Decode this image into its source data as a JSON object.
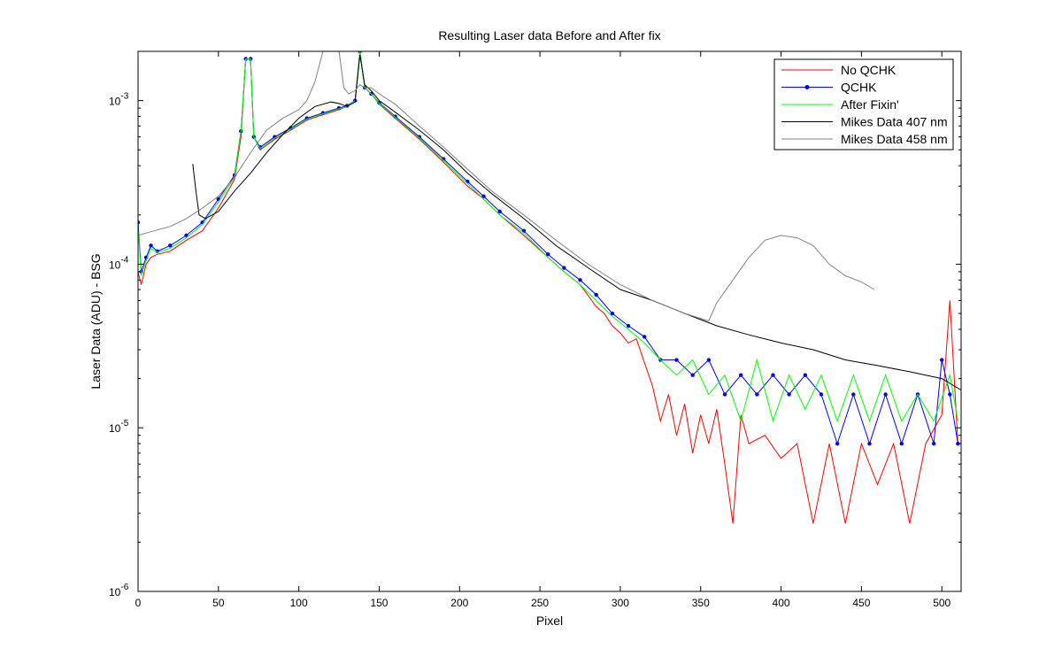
{
  "chart_data": {
    "type": "line",
    "title": "Resulting Laser data Before and After fix",
    "xlabel": "Pixel",
    "ylabel": "Laser Data (ADU) - BSG",
    "xlim": [
      0,
      512
    ],
    "ylim": [
      1e-06,
      0.002
    ],
    "yscale": "log",
    "grid": false,
    "legend_position": "top-right",
    "xticks": [
      0,
      50,
      100,
      150,
      200,
      250,
      300,
      350,
      400,
      450,
      500
    ],
    "xtick_labels": [
      "0",
      "50",
      "100",
      "150",
      "200",
      "250",
      "300",
      "350",
      "400",
      "450",
      "500"
    ],
    "yticks": [
      {
        "value": 0.001,
        "base": "10",
        "exp": "-3"
      },
      {
        "value": 0.0001,
        "base": "10",
        "exp": "-4"
      },
      {
        "value": 1e-05,
        "base": "10",
        "exp": "-5"
      },
      {
        "value": 1e-06,
        "base": "10",
        "exp": "-6"
      }
    ],
    "series": [
      {
        "name": "No QCHK",
        "color": "#ff0000",
        "marker": "none",
        "x": [
          0,
          2,
          5,
          8,
          12,
          20,
          30,
          40,
          50,
          60,
          64,
          67,
          70,
          72,
          76,
          85,
          95,
          105,
          115,
          125,
          130,
          135,
          138,
          141,
          145,
          150,
          160,
          175,
          190,
          205,
          215,
          225,
          240,
          255,
          265,
          275,
          285,
          290,
          295,
          300,
          305,
          310,
          315,
          320,
          325,
          330,
          335,
          340,
          345,
          350,
          355,
          360,
          365,
          370,
          375,
          380,
          390,
          400,
          410,
          420,
          430,
          440,
          450,
          460,
          470,
          480,
          490,
          500,
          505,
          510
        ],
        "y": [
          9e-05,
          7.5e-05,
          0.0001,
          0.00011,
          0.000115,
          0.00012,
          0.00014,
          0.00016,
          0.00022,
          0.00033,
          0.0006,
          0.0018,
          0.0018,
          0.0006,
          0.0005,
          0.00058,
          0.00066,
          0.00076,
          0.00082,
          0.00088,
          0.00092,
          0.001,
          0.002,
          0.0012,
          0.0011,
          0.00095,
          0.00078,
          0.00058,
          0.00042,
          0.0003,
          0.00025,
          0.0002,
          0.00015,
          0.00011,
          9e-05,
          7.5e-05,
          5.5e-05,
          5e-05,
          4.2e-05,
          3.8e-05,
          3.3e-05,
          3.5e-05,
          2.5e-05,
          1.8e-05,
          1.1e-05,
          1.6e-05,
          9e-06,
          1.4e-05,
          7e-06,
          1.2e-05,
          8e-06,
          1.3e-05,
          6e-06,
          2.6e-06,
          1.2e-05,
          8e-06,
          9e-06,
          6.5e-06,
          8e-06,
          2.6e-06,
          8e-06,
          2.6e-06,
          8e-06,
          4.5e-06,
          8e-06,
          2.6e-06,
          8e-06,
          1.2e-05,
          6e-05,
          8e-06
        ]
      },
      {
        "name": "QCHK",
        "color": "#0000ff",
        "marker": "dot",
        "x": [
          0,
          2,
          5,
          8,
          12,
          20,
          30,
          40,
          50,
          60,
          64,
          67,
          70,
          72,
          76,
          85,
          95,
          105,
          115,
          125,
          130,
          135,
          138,
          141,
          145,
          150,
          160,
          175,
          190,
          205,
          215,
          225,
          240,
          255,
          265,
          275,
          285,
          295,
          305,
          315,
          325,
          335,
          345,
          355,
          365,
          375,
          385,
          395,
          405,
          415,
          425,
          435,
          445,
          455,
          465,
          475,
          485,
          495,
          500,
          505,
          510
        ],
        "y": [
          0.00018,
          9e-05,
          0.00011,
          0.00013,
          0.00012,
          0.00013,
          0.00015,
          0.00018,
          0.00025,
          0.00035,
          0.00065,
          0.0018,
          0.0018,
          0.0006,
          0.00052,
          0.0006,
          0.00068,
          0.00078,
          0.00084,
          0.0009,
          0.00093,
          0.001,
          0.002,
          0.0012,
          0.0011,
          0.00097,
          0.0008,
          0.0006,
          0.00044,
          0.00032,
          0.00026,
          0.00021,
          0.00016,
          0.000115,
          9.5e-05,
          8e-05,
          6.5e-05,
          5e-05,
          4.2e-05,
          3.6e-05,
          2.6e-05,
          2.6e-05,
          2.1e-05,
          2.6e-05,
          1.6e-05,
          2.1e-05,
          1.6e-05,
          2.1e-05,
          1.6e-05,
          2.1e-05,
          1.6e-05,
          8e-06,
          1.6e-05,
          8e-06,
          1.6e-05,
          8e-06,
          1.6e-05,
          8e-06,
          2.6e-05,
          1.6e-05,
          8e-06
        ]
      },
      {
        "name": "After Fixin'",
        "color": "#00ff00",
        "marker": "none",
        "x": [
          0,
          2,
          5,
          8,
          12,
          20,
          30,
          40,
          50,
          60,
          64,
          67,
          70,
          72,
          76,
          85,
          95,
          105,
          115,
          125,
          130,
          135,
          138,
          141,
          145,
          150,
          160,
          175,
          190,
          205,
          215,
          225,
          240,
          255,
          265,
          275,
          285,
          295,
          305,
          315,
          325,
          335,
          345,
          355,
          365,
          375,
          385,
          395,
          405,
          415,
          425,
          435,
          445,
          455,
          465,
          475,
          485,
          495,
          505,
          510
        ],
        "y": [
          0.00017,
          8.5e-05,
          0.000105,
          0.000125,
          0.000118,
          0.000125,
          0.000145,
          0.000175,
          0.00024,
          0.00034,
          0.00065,
          0.0018,
          0.0018,
          0.0006,
          0.00051,
          0.00059,
          0.00067,
          0.00077,
          0.00083,
          0.00089,
          0.00092,
          0.001,
          0.002,
          0.0012,
          0.0011,
          0.00096,
          0.00079,
          0.00059,
          0.00043,
          0.00031,
          0.00025,
          0.0002,
          0.000155,
          0.00011,
          9e-05,
          7.5e-05,
          6e-05,
          4.8e-05,
          4e-05,
          3.3e-05,
          2.6e-05,
          2.1e-05,
          2.6e-05,
          1.6e-05,
          2.1e-05,
          1.1e-05,
          2.6e-05,
          1.1e-05,
          2.1e-05,
          1.3e-05,
          2.1e-05,
          1.1e-05,
          2.1e-05,
          1.1e-05,
          2.1e-05,
          1.1e-05,
          1.6e-05,
          1.1e-05,
          2.1e-05,
          1.1e-05
        ]
      },
      {
        "name": "Mikes Data 407 nm",
        "color": "#000000",
        "marker": "none",
        "x": [
          34,
          36,
          38,
          42,
          50,
          60,
          70,
          80,
          90,
          100,
          110,
          120,
          125,
          130,
          135,
          138,
          141,
          145,
          150,
          160,
          175,
          190,
          205,
          220,
          240,
          260,
          280,
          300,
          320,
          340,
          360,
          380,
          400,
          420,
          440,
          460,
          480,
          500,
          512
        ],
        "y": [
          0.00041,
          0.00028,
          0.0002,
          0.00019,
          0.00021,
          0.00028,
          0.00036,
          0.00048,
          0.00062,
          0.00078,
          0.00092,
          0.00098,
          0.00096,
          0.00092,
          0.00098,
          0.0019,
          0.00125,
          0.00115,
          0.001,
          0.00085,
          0.00066,
          0.0005,
          0.00036,
          0.00027,
          0.00019,
          0.00013,
          9.5e-05,
          7e-05,
          6e-05,
          5e-05,
          4.2e-05,
          3.7e-05,
          3.3e-05,
          3e-05,
          2.6e-05,
          2.4e-05,
          2.2e-05,
          2e-05,
          1.7e-05
        ]
      },
      {
        "name": "Mikes Data 458 nm",
        "color": "#808080",
        "marker": "none",
        "x": [
          0,
          10,
          20,
          30,
          40,
          50,
          60,
          70,
          80,
          90,
          100,
          105,
          110,
          115,
          118,
          121,
          125,
          128,
          131,
          135,
          138,
          141,
          145,
          150,
          160,
          175,
          190,
          205,
          220,
          240,
          260,
          280,
          300,
          320,
          340,
          355,
          360,
          370,
          380,
          390,
          400,
          410,
          420,
          430,
          440,
          450,
          458
        ],
        "y": [
          0.00015,
          0.00016,
          0.00017,
          0.00019,
          0.00022,
          0.00026,
          0.00034,
          0.00048,
          0.00066,
          0.00078,
          0.00088,
          0.001,
          0.0013,
          0.002,
          0.002,
          0.002,
          0.002,
          0.0012,
          0.0011,
          0.00115,
          0.00125,
          0.0012,
          0.0012,
          0.0011,
          0.00095,
          0.0007,
          0.00052,
          0.00038,
          0.00028,
          0.0002,
          0.00014,
          0.0001,
          7.5e-05,
          6e-05,
          5e-05,
          4.5e-05,
          5.8e-05,
          8e-05,
          0.00011,
          0.00014,
          0.00015,
          0.000145,
          0.00013,
          0.0001,
          8.5e-05,
          7.8e-05,
          7e-05
        ]
      }
    ]
  }
}
